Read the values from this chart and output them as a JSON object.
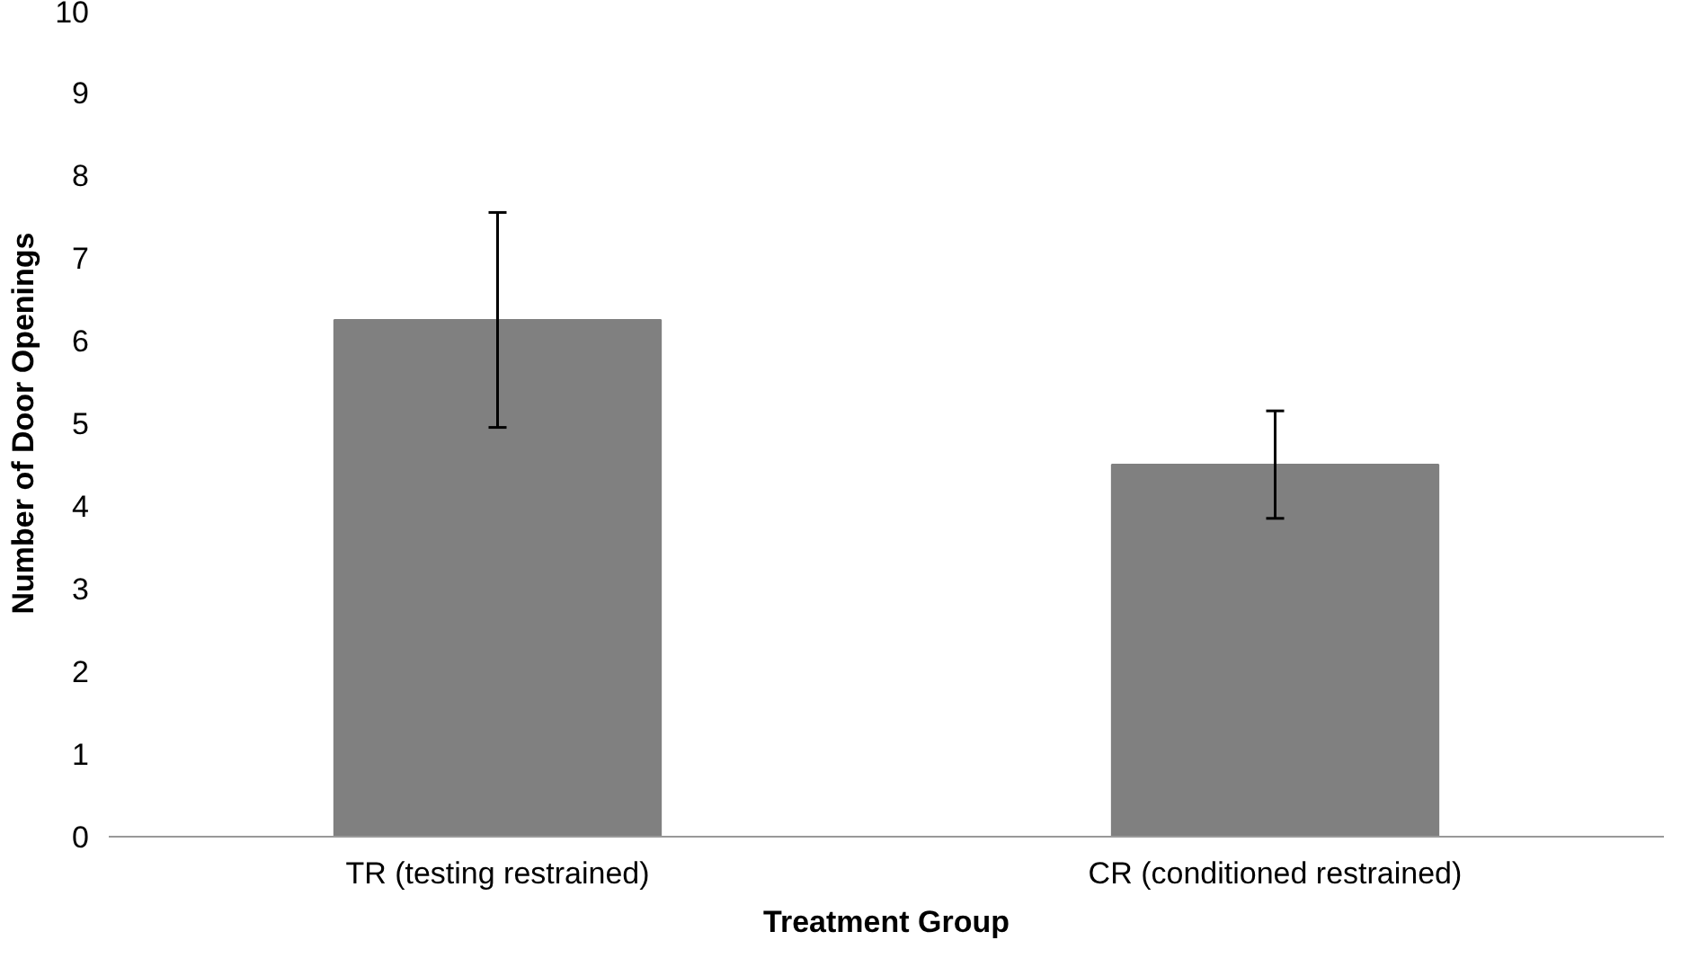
{
  "chart_data": {
    "type": "bar",
    "xlabel": "Treatment Group",
    "ylabel": "Number of Door Openings",
    "categories": [
      "TR (testing restrained)",
      "CR (conditioned restrained)"
    ],
    "values": [
      6.25,
      4.5
    ],
    "color": "#808080",
    "errors": [
      [
        4.95,
        7.55
      ],
      [
        3.85,
        5.15
      ]
    ],
    "ylim": [
      0,
      10
    ],
    "yticks": [
      0,
      1,
      2,
      3,
      4,
      5,
      6,
      7,
      8,
      9,
      10
    ],
    "grid": false
  }
}
